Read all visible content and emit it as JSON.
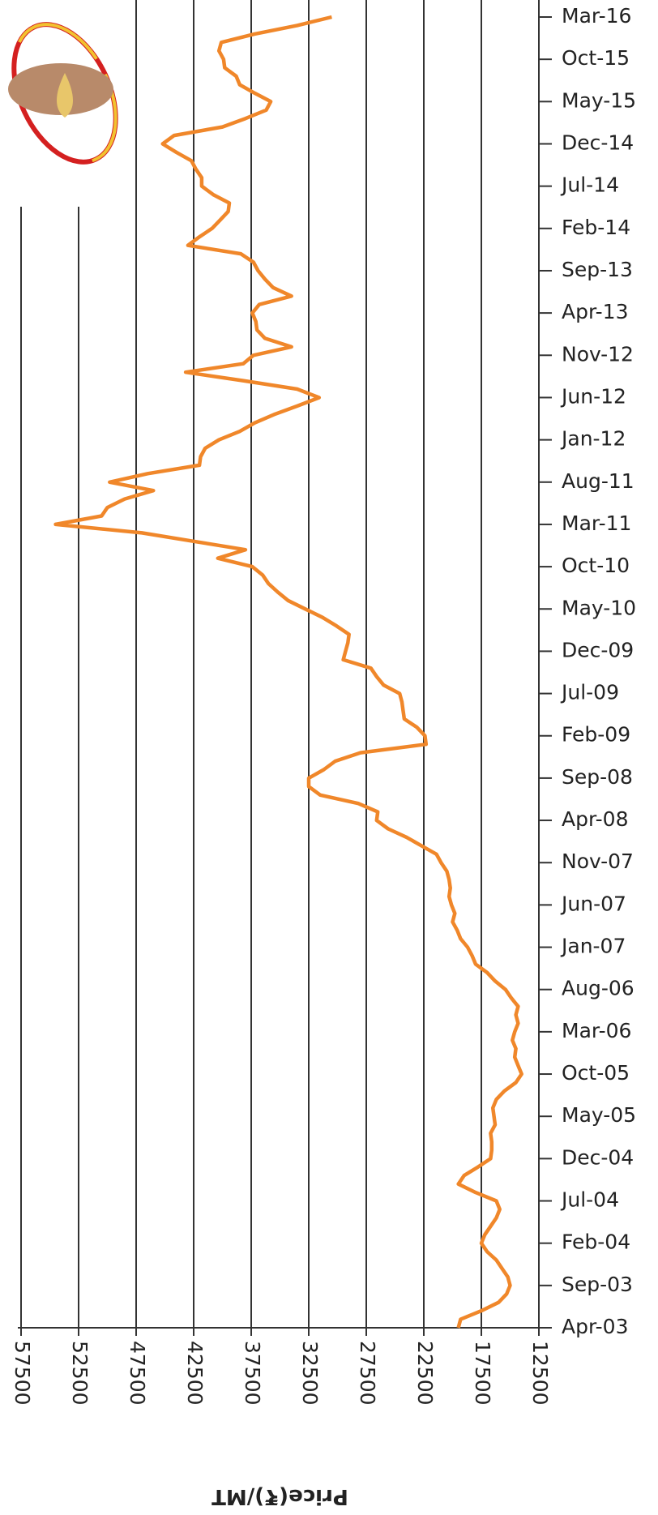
{
  "chart_data": {
    "type": "line",
    "orientation": "horizontal",
    "y_label": "Price(₹)/MT",
    "categories": [
      "Apr-03",
      null,
      null,
      null,
      null,
      "Sep-03",
      null,
      null,
      null,
      null,
      "Feb-04",
      null,
      null,
      null,
      null,
      "Jul-04",
      null,
      null,
      null,
      null,
      "Dec-04",
      null,
      null,
      null,
      null,
      "May-05",
      null,
      null,
      null,
      null,
      "Oct-05",
      null,
      null,
      null,
      null,
      "Mar-06",
      null,
      null,
      null,
      null,
      "Aug-06",
      null,
      null,
      null,
      null,
      "Jan-07",
      null,
      null,
      null,
      null,
      "Jun-07",
      null,
      null,
      null,
      null,
      "Nov-07",
      null,
      null,
      null,
      null,
      "Apr-08",
      null,
      null,
      null,
      null,
      "Sep-08",
      null,
      null,
      null,
      null,
      "Feb-09",
      null,
      null,
      null,
      null,
      "Jul-09",
      null,
      null,
      null,
      null,
      "Dec-09",
      null,
      null,
      null,
      null,
      "May-10",
      null,
      null,
      null,
      null,
      "Oct-10",
      null,
      null,
      null,
      null,
      "Mar-11",
      null,
      null,
      null,
      null,
      "Aug-11",
      null,
      null,
      null,
      null,
      "Jan-12",
      null,
      null,
      null,
      null,
      "Jun-12",
      null,
      null,
      null,
      null,
      "Nov-12",
      null,
      null,
      null,
      null,
      "Apr-13",
      null,
      null,
      null,
      null,
      "Sep-13",
      null,
      null,
      null,
      null,
      "Feb-14",
      null,
      null,
      null,
      null,
      "Jul-14",
      null,
      null,
      null,
      null,
      "Dec-14",
      null,
      null,
      null,
      null,
      "May-15",
      null,
      null,
      null,
      null,
      "Oct-15",
      null,
      null,
      null,
      null,
      "Mar-16"
    ],
    "values": [
      19500,
      19300,
      17500,
      16000,
      15300,
      15000,
      15200,
      15700,
      16200,
      17000,
      17500,
      17200,
      16700,
      16200,
      15900,
      16200,
      18000,
      19500,
      19000,
      17800,
      16700,
      16600,
      16600,
      16700,
      16300,
      16400,
      16500,
      16200,
      15500,
      14500,
      14000,
      14300,
      14600,
      14500,
      14800,
      14600,
      14300,
      14500,
      14300,
      14900,
      15400,
      16300,
      17000,
      18000,
      18300,
      18700,
      19300,
      19600,
      20000,
      19800,
      20100,
      20300,
      20200,
      20300,
      20500,
      21000,
      21400,
      22700,
      24000,
      25600,
      26600,
      26500,
      28200,
      31500,
      32500,
      32500,
      31200,
      30200,
      28000,
      22300,
      22400,
      23100,
      24200,
      24300,
      24400,
      24600,
      26000,
      26600,
      27100,
      29500,
      29300,
      29100,
      29000,
      30100,
      31300,
      32800,
      34300,
      35200,
      36000,
      36500,
      37400,
      40400,
      38000,
      42500,
      47000,
      54500,
      50500,
      50000,
      48500,
      46000,
      49800,
      46500,
      42000,
      41900,
      41500,
      40300,
      38500,
      37200,
      35500,
      33500,
      31600,
      33500,
      38200,
      43200,
      38200,
      37300,
      34000,
      36300,
      37000,
      37100,
      37400,
      36800,
      34000,
      35600,
      36300,
      36900,
      37300,
      38400,
      43000,
      42000,
      40900,
      40200,
      39500,
      39400,
      40800,
      41800,
      41800,
      42300,
      42700,
      44000,
      45200,
      44200,
      40000,
      38000,
      36200,
      35800,
      37200,
      38500,
      38800,
      39800,
      39900,
      40300,
      40100,
      37200,
      33500,
      30500
    ],
    "color": "#f0872a",
    "ylim": [
      57500,
      12500
    ],
    "yticks": [
      57500,
      52500,
      47500,
      42500,
      37500,
      32500,
      27500,
      22500,
      17500,
      12500
    ],
    "grid": true
  }
}
